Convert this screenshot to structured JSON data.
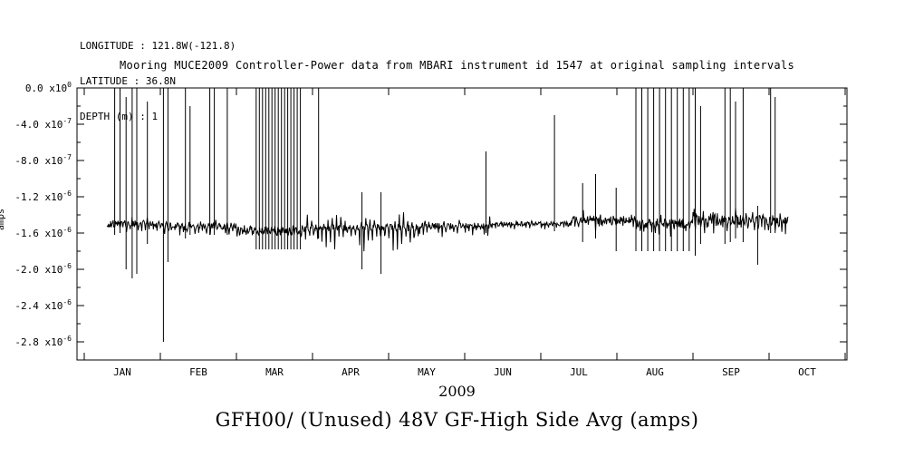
{
  "header": {
    "longitude": "LONGITUDE : 121.8W(-121.8)",
    "latitude": "LATITUDE : 36.8N",
    "depth": "DEPTH (m) : 1"
  },
  "chart_data": {
    "type": "line",
    "title": "Mooring MUCE2009 Controller-Power data from MBARI instrument id 1547 at original sampling intervals",
    "xlabel": "2009",
    "ylabel": "amps",
    "bottom_caption": "GFH00/ (Unused) 48V GF-High Side Avg (amps)",
    "background": "#ffffff",
    "axis_color": "#000000",
    "grid": false,
    "legend": "none",
    "x_tick_labels": [
      "JAN",
      "FEB",
      "MAR",
      "APR",
      "MAY",
      "JUN",
      "JUL",
      "AUG",
      "SEP",
      "OCT"
    ],
    "x_month_boundaries": [
      0,
      1,
      2,
      3,
      4,
      5,
      6,
      7,
      8,
      9,
      10
    ],
    "xlim_months": [
      -0.095,
      10.024
    ],
    "ylim": [
      -3e-06,
      0.0
    ],
    "y_ticks": [
      {
        "mantissa": "0.0",
        "exponent": "0",
        "value": 0
      },
      {
        "mantissa": "-4.0",
        "exponent": "-7",
        "value": -4e-07
      },
      {
        "mantissa": "-8.0",
        "exponent": "-7",
        "value": -8e-07
      },
      {
        "mantissa": "-1.2",
        "exponent": "-6",
        "value": -1.2e-06
      },
      {
        "mantissa": "-1.6",
        "exponent": "-6",
        "value": -1.6e-06
      },
      {
        "mantissa": "-2.0",
        "exponent": "-6",
        "value": -2e-06
      },
      {
        "mantissa": "-2.4",
        "exponent": "-6",
        "value": -2.4e-06
      },
      {
        "mantissa": "-2.8",
        "exponent": "-6",
        "value": -2.8e-06
      }
    ],
    "y_minor_values": [
      -2e-07,
      -6e-07,
      -1e-06,
      -1.4e-06,
      -1.8e-06,
      -2.2e-06,
      -2.6e-06
    ],
    "data_start_month": 0.3,
    "data_end_month": 9.25,
    "baseline_segments": [
      {
        "start": 0.3,
        "end": 1.0,
        "level": -1.5e-06,
        "noise": 4e-08,
        "ripple": 9e-08,
        "up": 5e-08,
        "period": 0.05
      },
      {
        "start": 1.0,
        "end": 2.0,
        "level": -1.53e-06,
        "noise": 4e-08,
        "ripple": 8e-08,
        "up": 5e-08,
        "period": 0.05
      },
      {
        "start": 2.0,
        "end": 2.9,
        "level": -1.58e-06,
        "noise": 5e-08,
        "ripple": 8e-08,
        "up": 6e-08,
        "period": 0.04
      },
      {
        "start": 2.9,
        "end": 4.4,
        "level": -1.54e-06,
        "noise": 4e-08,
        "ripple": 2.8e-07,
        "up": 1.8e-07,
        "period": 0.055
      },
      {
        "start": 4.4,
        "end": 5.35,
        "level": -1.52e-06,
        "noise": 3e-08,
        "ripple": 1.3e-07,
        "up": 8e-08,
        "period": 0.05
      },
      {
        "start": 5.35,
        "end": 6.4,
        "level": -1.5e-06,
        "noise": 2.5e-08,
        "ripple": 6e-08,
        "up": 4e-08,
        "period": 0.05
      },
      {
        "start": 6.4,
        "end": 7.25,
        "level": -1.46e-06,
        "noise": 5e-08,
        "ripple": 9e-08,
        "up": 8e-08,
        "period": 0.045
      },
      {
        "start": 7.25,
        "end": 8.0,
        "level": -1.5e-06,
        "noise": 5e-08,
        "ripple": 1.1e-07,
        "up": 8e-08,
        "period": 0.05
      },
      {
        "start": 8.0,
        "end": 8.4,
        "level": -1.45e-06,
        "noise": 9e-08,
        "ripple": 1.6e-07,
        "up": 1.4e-07,
        "period": 0.03
      },
      {
        "start": 8.4,
        "end": 9.25,
        "level": -1.46e-06,
        "noise": 6e-08,
        "ripple": 1.3e-07,
        "up": 1.2e-07,
        "period": 0.045
      }
    ],
    "spikes": [
      {
        "m": 0.4,
        "top": 0,
        "bot": -1.62e-06
      },
      {
        "m": 0.47,
        "top": 0,
        "bot": -1.6e-06
      },
      {
        "m": 0.55,
        "top": -1e-07,
        "bot": -2e-06
      },
      {
        "m": 0.63,
        "top": 0,
        "bot": -2.1e-06
      },
      {
        "m": 0.69,
        "top": 0,
        "bot": -2.05e-06
      },
      {
        "m": 0.83,
        "top": -1.5e-07,
        "bot": -1.72e-06
      },
      {
        "m": 1.04,
        "top": 0,
        "bot": -2.8e-06
      },
      {
        "m": 1.1,
        "top": 0,
        "bot": -1.92e-06
      },
      {
        "m": 1.33,
        "top": 0,
        "bot": -1.66e-06
      },
      {
        "m": 1.39,
        "top": -2e-07,
        "bot": -1.62e-06
      },
      {
        "m": 1.65,
        "top": 0,
        "bot": -1.62e-06
      },
      {
        "m": 1.71,
        "top": 0,
        "bot": -1.62e-06
      },
      {
        "m": 1.88,
        "top": 0,
        "bot": -1.62e-06
      },
      {
        "m": 3.08,
        "top": 0,
        "bot": -1.66e-06
      },
      {
        "m": 3.65,
        "top": -1.15e-06,
        "bot": -2e-06
      },
      {
        "m": 3.9,
        "top": -1.15e-06,
        "bot": -2.05e-06
      },
      {
        "m": 5.28,
        "top": -7e-07,
        "bot": -1.6e-06
      },
      {
        "m": 6.18,
        "top": -3e-07,
        "bot": -1.58e-06
      },
      {
        "m": 6.55,
        "top": -1.05e-06,
        "bot": -1.7e-06
      },
      {
        "m": 6.72,
        "top": -9.5e-07,
        "bot": -1.66e-06
      },
      {
        "m": 6.99,
        "top": -1.1e-06,
        "bot": -1.8e-06
      },
      {
        "m": 8.03,
        "top": 0,
        "bot": -1.85e-06
      },
      {
        "m": 8.1,
        "top": -2e-07,
        "bot": -1.72e-06
      },
      {
        "m": 8.42,
        "top": 0,
        "bot": -1.72e-06
      },
      {
        "m": 8.49,
        "top": 0,
        "bot": -1.7e-06
      },
      {
        "m": 8.56,
        "top": -1.5e-07,
        "bot": -1.66e-06
      },
      {
        "m": 8.66,
        "top": 0,
        "bot": -1.7e-06
      },
      {
        "m": 8.85,
        "top": -1.3e-06,
        "bot": -1.95e-06
      },
      {
        "m": 9.02,
        "top": 0,
        "bot": -1.6e-06
      },
      {
        "m": 9.08,
        "top": -1e-07,
        "bot": -1.6e-06
      }
    ],
    "spike_clusters": [
      {
        "start": 2.26,
        "end": 2.84,
        "count": 15,
        "top": 0,
        "bot": -1.78e-06
      },
      {
        "start": 7.25,
        "end": 7.95,
        "count": 10,
        "top": 0,
        "bot": -1.8e-06
      }
    ]
  }
}
